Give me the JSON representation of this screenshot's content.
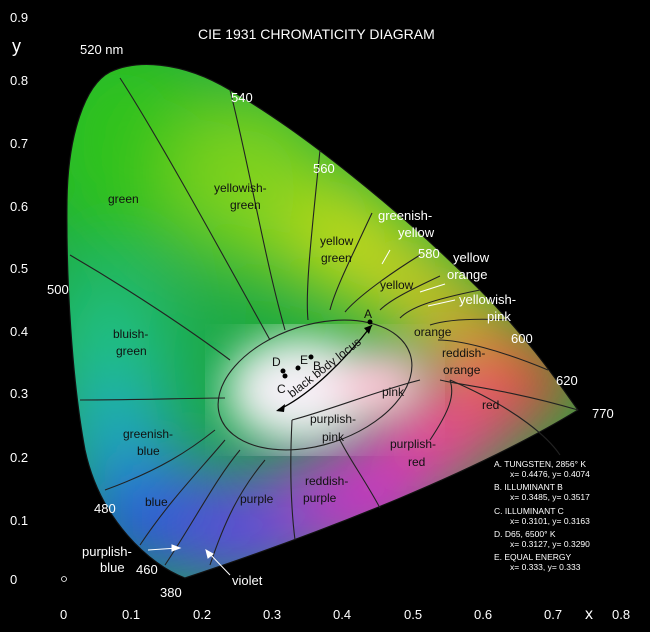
{
  "title": "CIE 1931 CHROMATICITY DIAGRAM",
  "axes": {
    "x_label": "x",
    "y_label": "y",
    "x_ticks": [
      "0",
      "0.1",
      "0.2",
      "0.3",
      "0.4",
      "0.5",
      "0.6",
      "0.7",
      "0.8"
    ],
    "y_ticks": [
      "0",
      "0.1",
      "0.2",
      "0.3",
      "0.4",
      "0.5",
      "0.6",
      "0.7",
      "0.8",
      "0.9"
    ]
  },
  "wavelengths": [
    "520 nm",
    "540",
    "560",
    "580",
    "600",
    "620",
    "770",
    "500",
    "480",
    "460",
    "380"
  ],
  "regions": {
    "green": "green",
    "yellowish_green_1": "yellowish-",
    "yellowish_green_2": "green",
    "yellow_green_1": "yellow",
    "yellow_green_2": "green",
    "greenish_yellow_1": "greenish-",
    "greenish_yellow_2": "yellow",
    "yellow": "yellow",
    "yellow_orange_1": "yellow",
    "yellow_orange_2": "orange",
    "yellowish_pink_1": "yellowish-",
    "yellowish_pink_2": "pink",
    "orange": "orange",
    "reddish_orange_1": "reddish-",
    "reddish_orange_2": "orange",
    "red": "red",
    "pink": "pink",
    "purplish_pink_1": "purplish-",
    "purplish_pink_2": "pink",
    "purplish_red_1": "purplish-",
    "purplish_red_2": "red",
    "reddish_purple_1": "reddish-",
    "reddish_purple_2": "purple",
    "purple": "purple",
    "violet": "violet",
    "bluish_green_1": "bluish-",
    "bluish_green_2": "green",
    "greenish_blue_1": "greenish-",
    "greenish_blue_2": "blue",
    "blue": "blue",
    "purplish_blue_1": "purplish-",
    "purplish_blue_2": "blue",
    "black_body_locus": "black body locus"
  },
  "points": [
    "A",
    "B",
    "C",
    "D",
    "E"
  ],
  "legend": [
    [
      "A. TUNGSTEN, 2856° K",
      "x= 0.4476, y= 0.4074"
    ],
    [
      "B. ILLUMINANT B",
      "x= 0.3485, y= 0.3517"
    ],
    [
      "C. ILLUMINANT C",
      "x= 0.3101, y= 0.3163"
    ],
    [
      "D. D65, 6500° K",
      "x= 0.3127, y= 0.3290"
    ],
    [
      "E. EQUAL ENERGY",
      "x= 0.333, y= 0.333"
    ]
  ]
}
